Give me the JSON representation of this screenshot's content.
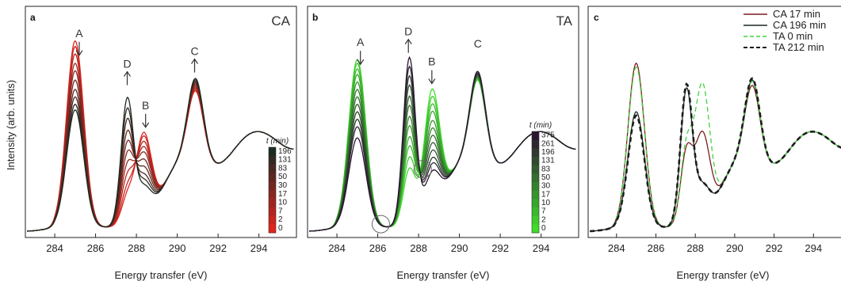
{
  "figure": {
    "ylabel": "Intensity (arb. units)",
    "xlabel": "Energy transfer (eV)"
  },
  "chart_data": [
    {
      "type": "line",
      "panel": "a",
      "title": "CA",
      "title_color": "#b01c1c",
      "xlabel": "Energy transfer (eV)",
      "ylabel": "Intensity (arb. units)",
      "xlim": [
        282.6,
        295.8
      ],
      "xticks": [
        284,
        286,
        288,
        290,
        292,
        294
      ],
      "annotations": [
        {
          "label": "A",
          "energy": 285.2,
          "arrow": "down"
        },
        {
          "label": "D",
          "energy": 287.55,
          "arrow": "up"
        },
        {
          "label": "B",
          "energy": 288.45,
          "arrow": "down"
        },
        {
          "label": "C",
          "energy": 290.85,
          "arrow": "up"
        }
      ],
      "colorbar": {
        "title": "t (min)",
        "labels": [
          "196",
          "131",
          "83",
          "50",
          "30",
          "17",
          "10",
          "7",
          "2",
          "0"
        ],
        "color_top": "#1c2a22",
        "color_bottom": "#e0241e"
      },
      "series_times": [
        0,
        2,
        7,
        10,
        17,
        30,
        50,
        83,
        131,
        196
      ],
      "peaks": {
        "A": [
          1.0,
          0.97,
          0.93,
          0.88,
          0.84,
          0.79,
          0.74,
          0.7,
          0.66,
          0.63
        ],
        "D": [
          0.14,
          0.18,
          0.24,
          0.3,
          0.36,
          0.42,
          0.48,
          0.55,
          0.61,
          0.67
        ],
        "B": [
          0.46,
          0.44,
          0.41,
          0.38,
          0.35,
          0.31,
          0.27,
          0.23,
          0.2,
          0.17
        ],
        "C": [
          0.48,
          0.49,
          0.5,
          0.51,
          0.52,
          0.53,
          0.54,
          0.55,
          0.56,
          0.57
        ]
      }
    },
    {
      "type": "line",
      "panel": "b",
      "title": "TA",
      "title_color": "#2fb52f",
      "xlabel": "Energy transfer (eV)",
      "xlim": [
        282.6,
        295.8
      ],
      "xticks": [
        284,
        286,
        288,
        290,
        292,
        294
      ],
      "annotations": [
        {
          "label": "A",
          "energy": 285.15,
          "arrow": "down"
        },
        {
          "label": "D",
          "energy": 287.5,
          "arrow": "up"
        },
        {
          "label": "B",
          "energy": 288.65,
          "arrow": "down"
        },
        {
          "label": "C",
          "energy": 290.9,
          "arrow": "none"
        }
      ],
      "colorbar": {
        "title": "t (min)",
        "labels": [
          "375",
          "261",
          "196",
          "131",
          "83",
          "50",
          "30",
          "17",
          "10",
          "7",
          "2",
          "0"
        ],
        "color_top": "#2a1530",
        "color_bottom": "#3fdc2c"
      },
      "series_times": [
        0,
        2,
        7,
        10,
        17,
        30,
        50,
        83,
        131,
        196,
        261,
        375
      ],
      "peaks": {
        "A": [
          0.9,
          0.88,
          0.85,
          0.82,
          0.78,
          0.74,
          0.7,
          0.66,
          0.62,
          0.58,
          0.54,
          0.48
        ],
        "D": [
          0.3,
          0.36,
          0.42,
          0.47,
          0.53,
          0.58,
          0.64,
          0.69,
          0.75,
          0.8,
          0.85,
          0.9
        ],
        "B": [
          0.66,
          0.62,
          0.58,
          0.54,
          0.49,
          0.45,
          0.41,
          0.37,
          0.33,
          0.29,
          0.26,
          0.22
        ],
        "C": [
          0.56,
          0.56,
          0.57,
          0.57,
          0.58,
          0.58,
          0.59,
          0.59,
          0.6,
          0.6,
          0.61,
          0.62
        ]
      },
      "isosbestic_points_eV": [
        286.15,
        288.2
      ]
    },
    {
      "type": "line",
      "panel": "c",
      "xlabel": "Energy transfer (eV)",
      "xlim": [
        282.6,
        295.8
      ],
      "xticks": [
        284,
        286,
        288,
        290,
        292,
        294
      ],
      "legend": "top-right",
      "series": [
        {
          "name": "CA 17 min",
          "color": "#7a1f1f",
          "dash": "solid",
          "peaks": {
            "A": 0.88,
            "D": 0.38,
            "B": 0.46,
            "C": 0.52
          }
        },
        {
          "name": "CA 196 min",
          "color": "#1a2a24",
          "dash": "solid",
          "peaks": {
            "A": 0.62,
            "D": 0.72,
            "B": 0.18,
            "C": 0.56
          }
        },
        {
          "name": "TA 0 min",
          "color": "#3fd43a",
          "dash": "dashed",
          "peaks": {
            "A": 0.86,
            "D": 0.4,
            "B": 0.72,
            "C": 0.55
          }
        },
        {
          "name": "TA 212 min",
          "color": "#1c1c1c",
          "dash": "dashed",
          "peaks": {
            "A": 0.6,
            "D": 0.74,
            "B": 0.18,
            "C": 0.57
          }
        }
      ]
    }
  ]
}
